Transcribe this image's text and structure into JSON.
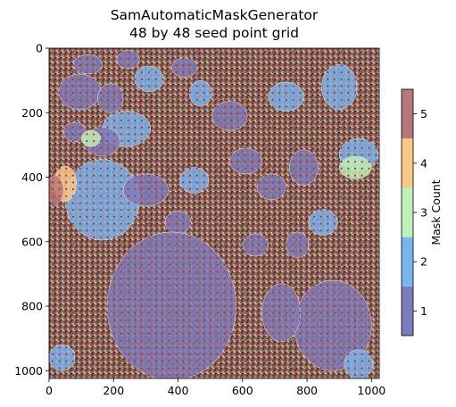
{
  "chart_data": {
    "type": "heatmap",
    "title": "SamAutomaticMaskGenerator",
    "subtitle": "48 by 48 seed point grid",
    "xlabel": "",
    "ylabel": "",
    "x_ticks": [
      "0",
      "200",
      "400",
      "600",
      "800",
      "1000"
    ],
    "y_ticks": [
      "0",
      "200",
      "400",
      "600",
      "800",
      "1000"
    ],
    "xlim": [
      0,
      1024
    ],
    "ylim": [
      1024,
      0
    ],
    "grid": false,
    "grid_points": 48,
    "colorbar": {
      "label": "Mask Count",
      "ticks": [
        "1",
        "2",
        "3",
        "4",
        "5"
      ],
      "range": [
        0.5,
        5.5
      ],
      "colors": [
        "#7c7cbb",
        "#79b4ee",
        "#bdf2b6",
        "#f8c987",
        "#b77977"
      ]
    },
    "regions": [
      {
        "cx": 120,
        "cy": 50,
        "rx": 45,
        "ry": 30,
        "count": 1
      },
      {
        "cx": 245,
        "cy": 35,
        "rx": 35,
        "ry": 28,
        "count": 1
      },
      {
        "cx": 95,
        "cy": 135,
        "rx": 65,
        "ry": 55,
        "count": 1
      },
      {
        "cx": 190,
        "cy": 155,
        "rx": 40,
        "ry": 45,
        "count": 1
      },
      {
        "cx": 310,
        "cy": 95,
        "rx": 45,
        "ry": 40,
        "count": 2
      },
      {
        "cx": 240,
        "cy": 250,
        "rx": 75,
        "ry": 55,
        "count": 2
      },
      {
        "cx": 165,
        "cy": 470,
        "rx": 115,
        "ry": 125,
        "count": 2
      },
      {
        "cx": 165,
        "cy": 290,
        "rx": 55,
        "ry": 45,
        "count": 1
      },
      {
        "cx": 300,
        "cy": 440,
        "rx": 70,
        "ry": 50,
        "count": 1
      },
      {
        "cx": 400,
        "cy": 540,
        "rx": 40,
        "ry": 35,
        "count": 1
      },
      {
        "cx": 450,
        "cy": 410,
        "rx": 45,
        "ry": 40,
        "count": 2
      },
      {
        "cx": 470,
        "cy": 140,
        "rx": 35,
        "ry": 40,
        "count": 2
      },
      {
        "cx": 420,
        "cy": 60,
        "rx": 40,
        "ry": 30,
        "count": 1
      },
      {
        "cx": 560,
        "cy": 210,
        "rx": 55,
        "ry": 45,
        "count": 1
      },
      {
        "cx": 610,
        "cy": 350,
        "rx": 50,
        "ry": 40,
        "count": 1
      },
      {
        "cx": 690,
        "cy": 430,
        "rx": 45,
        "ry": 40,
        "count": 1
      },
      {
        "cx": 790,
        "cy": 370,
        "rx": 45,
        "ry": 55,
        "count": 1
      },
      {
        "cx": 735,
        "cy": 150,
        "rx": 55,
        "ry": 45,
        "count": 2
      },
      {
        "cx": 900,
        "cy": 120,
        "rx": 55,
        "ry": 70,
        "count": 2
      },
      {
        "cx": 960,
        "cy": 330,
        "rx": 60,
        "ry": 50,
        "count": 2
      },
      {
        "cx": 950,
        "cy": 370,
        "rx": 50,
        "ry": 35,
        "count": 3
      },
      {
        "cx": 850,
        "cy": 540,
        "rx": 45,
        "ry": 40,
        "count": 2
      },
      {
        "cx": 770,
        "cy": 610,
        "rx": 35,
        "ry": 40,
        "count": 1
      },
      {
        "cx": 380,
        "cy": 800,
        "rx": 200,
        "ry": 230,
        "count": 1
      },
      {
        "cx": 880,
        "cy": 860,
        "rx": 120,
        "ry": 140,
        "count": 1
      },
      {
        "cx": 640,
        "cy": 610,
        "rx": 40,
        "ry": 35,
        "count": 1
      },
      {
        "cx": 80,
        "cy": 260,
        "rx": 35,
        "ry": 30,
        "count": 1
      },
      {
        "cx": 130,
        "cy": 280,
        "rx": 30,
        "ry": 25,
        "count": 3
      },
      {
        "cx": 50,
        "cy": 420,
        "rx": 35,
        "ry": 55,
        "count": 4
      },
      {
        "cx": 20,
        "cy": 440,
        "rx": 25,
        "ry": 45,
        "count": 5
      },
      {
        "cx": 720,
        "cy": 820,
        "rx": 60,
        "ry": 90,
        "count": 1
      },
      {
        "cx": 40,
        "cy": 960,
        "rx": 40,
        "ry": 40,
        "count": 2
      },
      {
        "cx": 960,
        "cy": 980,
        "rx": 45,
        "ry": 45,
        "count": 2
      }
    ]
  }
}
